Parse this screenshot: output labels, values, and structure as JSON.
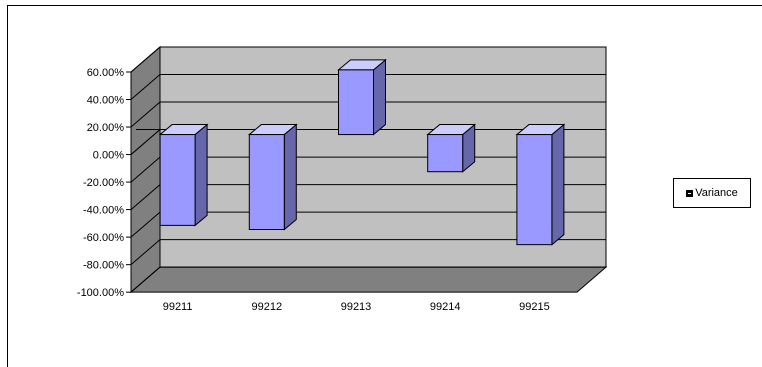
{
  "chart_data": {
    "type": "bar",
    "categories": [
      "99211",
      "99212",
      "99213",
      "99214",
      "99215"
    ],
    "series": [
      {
        "name": "Variance",
        "values": [
          -66,
          -69,
          47,
          -27,
          -80
        ]
      }
    ],
    "yticks": [
      "60.00%",
      "40.00%",
      "20.00%",
      "0.00%",
      "-20.00%",
      "-40.00%",
      "-60.00%",
      "-80.00%",
      "-100.00%"
    ],
    "ylim": [
      -100,
      60
    ],
    "grid": true,
    "legend_position": "right",
    "colors": {
      "bar_front": "#9999ff",
      "bar_side": "#6666aa",
      "bar_top": "#ccccff",
      "wall": "#c0c0c0",
      "floor": "#808080",
      "axis_side": "#808080"
    }
  }
}
